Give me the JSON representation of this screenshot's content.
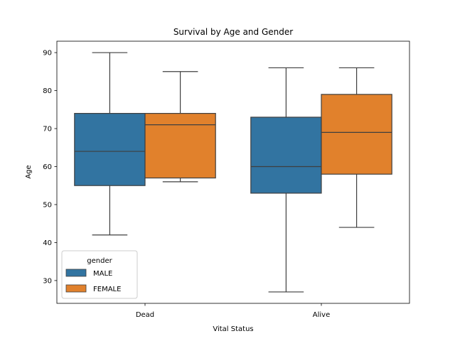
{
  "chart_data": {
    "type": "box",
    "title": "Survival by Age and Gender",
    "xlabel": "Vital Status",
    "ylabel": "Age",
    "categories": [
      "Dead",
      "Alive"
    ],
    "ylim": [
      24,
      93
    ],
    "yticks": [
      30,
      40,
      50,
      60,
      70,
      80,
      90
    ],
    "grid": false,
    "legend": {
      "title": "gender",
      "placement": "lower-left"
    },
    "series": [
      {
        "name": "MALE",
        "color": "#3274a1",
        "boxes": [
          {
            "category": "Dead",
            "whisker_low": 42,
            "q1": 55,
            "median": 64,
            "q3": 74,
            "whisker_high": 90
          },
          {
            "category": "Alive",
            "whisker_low": 27,
            "q1": 53,
            "median": 60,
            "q3": 73,
            "whisker_high": 86
          }
        ]
      },
      {
        "name": "FEMALE",
        "color": "#e1812c",
        "boxes": [
          {
            "category": "Dead",
            "whisker_low": 56,
            "q1": 57,
            "median": 71,
            "q3": 74,
            "whisker_high": 85
          },
          {
            "category": "Alive",
            "whisker_low": 44,
            "q1": 58,
            "median": 69,
            "q3": 79,
            "whisker_high": 86
          }
        ]
      }
    ]
  }
}
